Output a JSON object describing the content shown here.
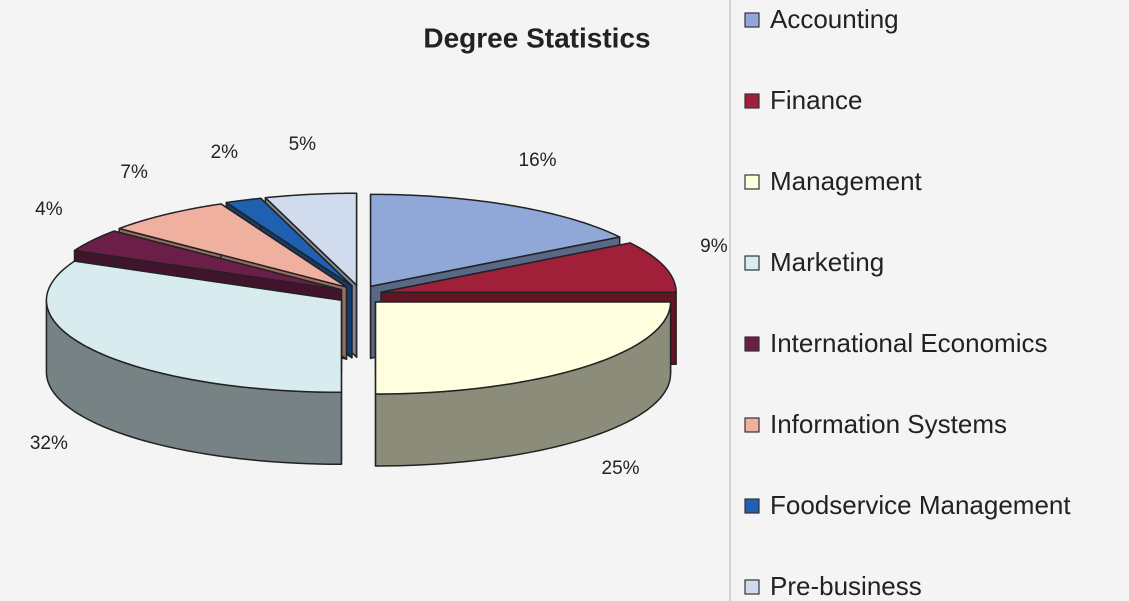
{
  "chart_data": {
    "type": "pie3d",
    "title": "Degree Statistics",
    "categories": [
      "Accounting",
      "Finance",
      "Management",
      "Marketing",
      "International Economics",
      "Information Systems",
      "Foodservice Management",
      "Pre-business"
    ],
    "values": [
      16,
      9,
      25,
      32,
      4,
      7,
      2,
      5
    ],
    "value_labels": [
      "16%",
      "9%",
      "25%",
      "32%",
      "4%",
      "7%",
      "2%",
      "5%"
    ],
    "colors": [
      "#8fa8d8",
      "#a0203a",
      "#ffffe0",
      "#d8ecf0",
      "#6a1e48",
      "#f0b0a0",
      "#2060b0",
      "#d0dcee"
    ],
    "legend": "right"
  }
}
